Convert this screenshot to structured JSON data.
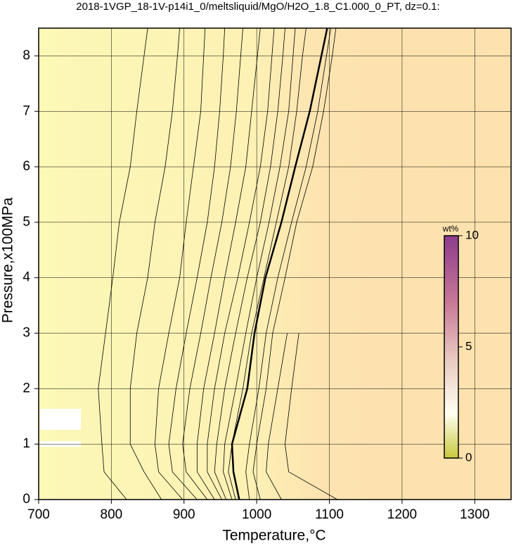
{
  "chart_data": {
    "type": "contour",
    "title": "2018-1VGP_18-1V-p14i1_0/meltsliquid/MgO/H2O_1.8_C1.000_0_PT, dz=0.1:",
    "xlabel": "Temperature,°C",
    "ylabel": "Pressure,x100MPa",
    "xlim": [
      700,
      1350
    ],
    "ylim": [
      0,
      8.5
    ],
    "xticks": [
      700,
      800,
      900,
      1000,
      1100,
      1200,
      1300
    ],
    "yticks": [
      0,
      1,
      2,
      3,
      4,
      5,
      6,
      7,
      8
    ],
    "grid": true,
    "y": [
      0,
      0.5,
      1,
      2,
      3,
      4,
      5,
      6,
      7,
      8,
      8.5
    ],
    "series": [
      {
        "color": "#000000",
        "linewidth": 0.8,
        "x": [
          821,
          790,
          787,
          782,
          792,
          802,
          811,
          826,
          835,
          845,
          850
        ]
      },
      {
        "color": "#000000",
        "linewidth": 0.8,
        "x": [
          869,
          845,
          826,
          826,
          835,
          850,
          860,
          874,
          884,
          891,
          894
        ]
      },
      {
        "color": "#000000",
        "linewidth": 0.8,
        "x": [
          898,
          865,
          860,
          865,
          879,
          894,
          903,
          913,
          923,
          927,
          929
        ]
      },
      {
        "color": "#000000",
        "linewidth": 0.8,
        "x": [
          918,
          884,
          879,
          889,
          903,
          918,
          932,
          942,
          949,
          954,
          956
        ]
      },
      {
        "color": "#000000",
        "linewidth": 0.8,
        "x": [
          932,
          903,
          898,
          908,
          923,
          937,
          952,
          964,
          972,
          978,
          981
        ]
      },
      {
        "color": "#000000",
        "linewidth": 0.8,
        "x": [
          942,
          918,
          918,
          927,
          942,
          956,
          971,
          985,
          993,
          1001,
          1005
        ]
      },
      {
        "color": "#000000",
        "linewidth": 0.8,
        "x": [
          952,
          932,
          932,
          942,
          956,
          974,
          990,
          1005,
          1015,
          1021,
          1024
        ]
      },
      {
        "color": "#000000",
        "linewidth": 0.8,
        "x": [
          958,
          942,
          945,
          956,
          971,
          987,
          1005,
          1019,
          1029,
          1036,
          1039
        ]
      },
      {
        "color": "#000000",
        "linewidth": 0.8,
        "x": [
          966,
          954,
          956,
          971,
          985,
          1000,
          1017,
          1032,
          1044,
          1050,
          1053
        ]
      },
      {
        "color": "#000000",
        "linewidth": 0.8,
        "x": [
          971,
          961,
          966,
          981,
          993,
          1010,
          1027,
          1044,
          1055,
          1063,
          1068
        ]
      },
      {
        "color": "#000000",
        "linewidth": 2.5,
        "x": [
          976,
          968,
          966,
          987,
          997,
          1012,
          1034,
          1053,
          1073,
          1089,
          1097
        ]
      },
      {
        "color": "#000000",
        "linewidth": 0.8,
        "x": [
          990,
          985,
          990,
          1003,
          1013,
          1029,
          1048,
          1068,
          1084,
          1096,
          1102
        ]
      },
      {
        "color": "#000000",
        "linewidth": 0.8,
        "x": [
          1005,
          995,
          1000,
          1013,
          1022,
          1039,
          1055,
          1077,
          1092,
          1104,
          1109
        ]
      },
      {
        "color": "#000000",
        "linewidth": 0.8,
        "x": [
          1034,
          1013,
          1016,
          1029,
          1042,
          null,
          null,
          null,
          null,
          null,
          null
        ]
      },
      {
        "color": "#000000",
        "linewidth": 0.8,
        "x": [
          1111,
          1044,
          1039,
          1048,
          1058,
          null,
          null,
          null,
          null,
          null,
          null
        ]
      }
    ],
    "colorbar": {
      "label": "wt%",
      "lim": [
        0,
        10
      ],
      "ticks": [
        0,
        5,
        10
      ]
    }
  }
}
